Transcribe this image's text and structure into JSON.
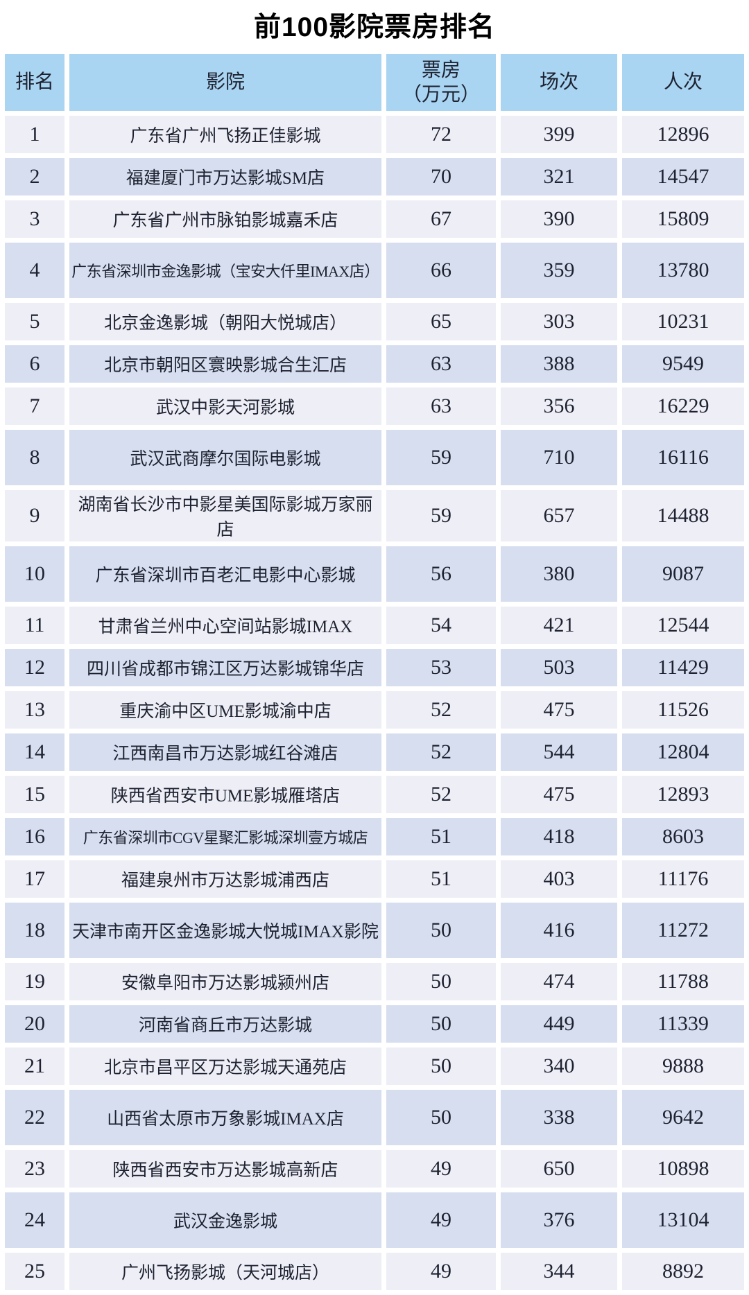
{
  "title": "前100影院票房排名",
  "colors": {
    "header_bg": "#A9D4F2",
    "row_light": "#EEEEF6",
    "row_dark": "#D6DEEF",
    "text": "#1E2230",
    "title_color": "#000000",
    "gap_bg": "#FFFFFF"
  },
  "chart_data": {
    "type": "table",
    "title": "前100影院票房排名",
    "columns": [
      "排名",
      "影院",
      "票房\n（万元）",
      "场次",
      "人次"
    ],
    "column_keys": [
      "rank",
      "cinema",
      "boxoffice_wan_yuan",
      "sessions",
      "attendance"
    ],
    "rows": [
      [
        1,
        "广东省广州飞扬正佳影城",
        72,
        399,
        12896
      ],
      [
        2,
        "福建厦门市万达影城SM店",
        70,
        321,
        14547
      ],
      [
        3,
        "广东省广州市脉铂影城嘉禾店",
        67,
        390,
        15809
      ],
      [
        4,
        "广东省深圳市金逸影城（宝安大仟里IMAX店）",
        66,
        359,
        13780
      ],
      [
        5,
        "北京金逸影城（朝阳大悦城店）",
        65,
        303,
        10231
      ],
      [
        6,
        "北京市朝阳区寰映影城合生汇店",
        63,
        388,
        9549
      ],
      [
        7,
        "武汉中影天河影城",
        63,
        356,
        16229
      ],
      [
        8,
        "武汉武商摩尔国际电影城",
        59,
        710,
        16116
      ],
      [
        9,
        "湖南省长沙市中影星美国际影城万家丽店",
        59,
        657,
        14488
      ],
      [
        10,
        "广东省深圳市百老汇电影中心影城",
        56,
        380,
        9087
      ],
      [
        11,
        "甘肃省兰州中心空间站影城IMAX",
        54,
        421,
        12544
      ],
      [
        12,
        "四川省成都市锦江区万达影城锦华店",
        53,
        503,
        11429
      ],
      [
        13,
        "重庆渝中区UME影城渝中店",
        52,
        475,
        11526
      ],
      [
        14,
        "江西南昌市万达影城红谷滩店",
        52,
        544,
        12804
      ],
      [
        15,
        "陕西省西安市UME影城雁塔店",
        52,
        475,
        12893
      ],
      [
        16,
        "广东省深圳市CGV星聚汇影城深圳壹方城店",
        51,
        418,
        8603
      ],
      [
        17,
        "福建泉州市万达影城浦西店",
        51,
        403,
        11176
      ],
      [
        18,
        "天津市南开区金逸影城大悦城IMAX影院",
        50,
        416,
        11272
      ],
      [
        19,
        "安徽阜阳市万达影城颍州店",
        50,
        474,
        11788
      ],
      [
        20,
        "河南省商丘市万达影城",
        50,
        449,
        11339
      ],
      [
        21,
        "北京市昌平区万达影城天通苑店",
        50,
        340,
        9888
      ],
      [
        22,
        "山西省太原市万象影城IMAX店",
        50,
        338,
        9642
      ],
      [
        23,
        "陕西省西安市万达影城高新店",
        49,
        650,
        10898
      ],
      [
        24,
        "武汉金逸影城",
        49,
        376,
        13104
      ],
      [
        25,
        "广州飞扬影城（天河城店）",
        49,
        344,
        8892
      ]
    ]
  }
}
